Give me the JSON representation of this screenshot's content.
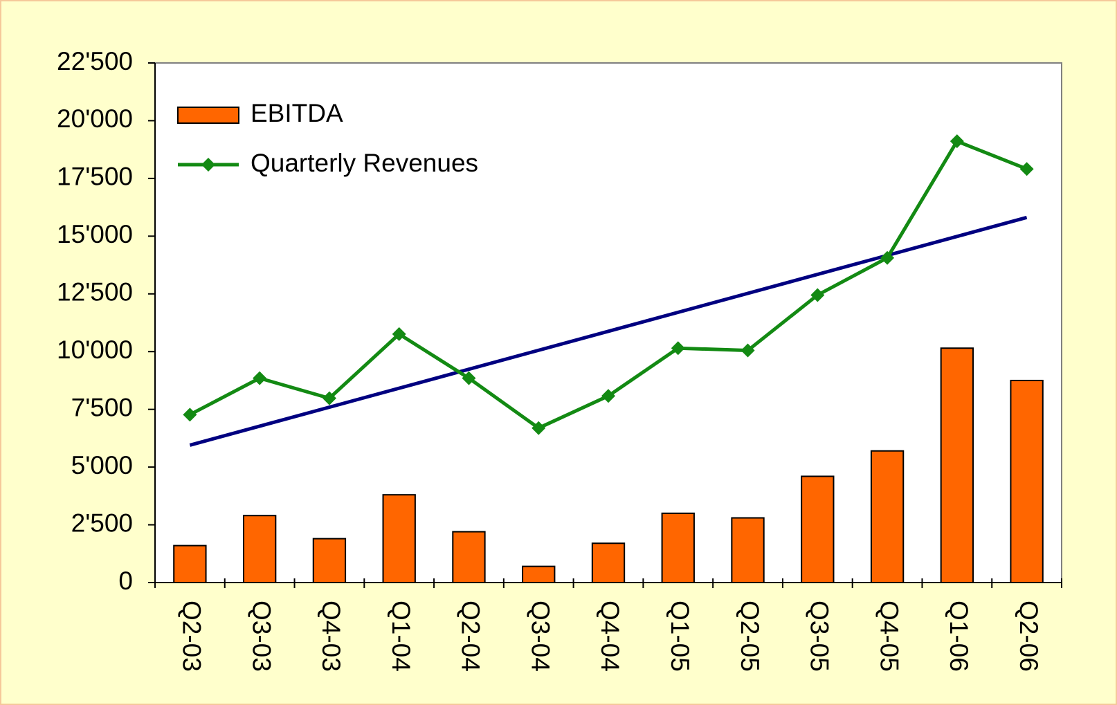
{
  "chart_data": {
    "type": "bar-line",
    "categories": [
      "Q2-03",
      "Q3-03",
      "Q4-03",
      "Q1-04",
      "Q2-04",
      "Q3-04",
      "Q4-04",
      "Q1-05",
      "Q2-05",
      "Q3-05",
      "Q4-05",
      "Q1-06",
      "Q2-06"
    ],
    "series": [
      {
        "name": "EBITDA",
        "type": "bar",
        "color": "#ff6600",
        "values": [
          1600,
          2900,
          1900,
          3800,
          2200,
          700,
          1700,
          3000,
          2800,
          4600,
          5700,
          10150,
          8750
        ]
      },
      {
        "name": "Quarterly Revenues",
        "type": "line",
        "color": "#138a13",
        "values": [
          7270,
          8850,
          7980,
          10760,
          8850,
          6690,
          8080,
          10150,
          10050,
          12450,
          14060,
          19110,
          17910
        ]
      }
    ],
    "trend": {
      "color": "#000080",
      "start": 5950,
      "end": 15810
    },
    "ylim": [
      0,
      22500
    ],
    "yticks": [
      0,
      {
        "value": 2500,
        "label": "2'500"
      },
      {
        "value": 5000,
        "label": "5'000"
      },
      {
        "value": 7500,
        "label": "7'500"
      },
      {
        "value": 10000,
        "label": "10'000"
      },
      {
        "value": 12500,
        "label": "12'500"
      },
      {
        "value": 15000,
        "label": "15'000"
      },
      {
        "value": 17500,
        "label": "17'500"
      },
      {
        "value": 20000,
        "label": "20'000"
      },
      {
        "value": 22500,
        "label": "22'500"
      }
    ],
    "legend": "upper left"
  }
}
